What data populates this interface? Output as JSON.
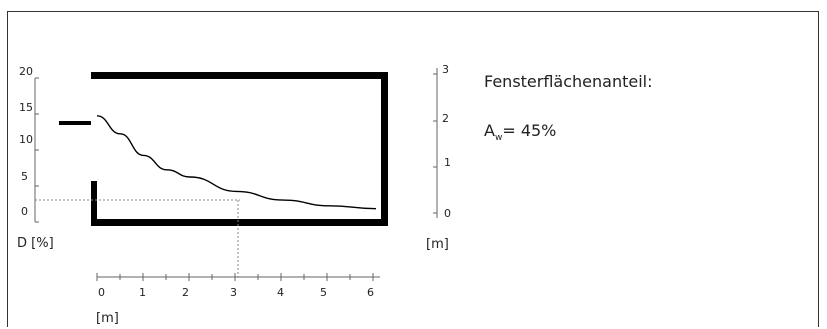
{
  "left_axis": {
    "ticks": [
      "20",
      "15",
      "10",
      "5",
      "0"
    ],
    "label": "D [%]"
  },
  "right_axis": {
    "ticks": [
      "3",
      "2",
      "1",
      "0"
    ],
    "unit": "[m]"
  },
  "bottom_axis": {
    "ticks": [
      "0",
      "1",
      "2",
      "3",
      "4",
      "5",
      "6"
    ],
    "unit": "[m]"
  },
  "info": {
    "title": "Fensterflächenanteil:",
    "symbol": "A",
    "subscript": "w",
    "value_text": "= 45%"
  },
  "chart_data": {
    "type": "line",
    "x": [
      0,
      0.5,
      1,
      1.5,
      2,
      3,
      4,
      5,
      6
    ],
    "y": [
      13.5,
      11,
      8,
      6,
      5,
      3,
      1.8,
      1,
      0.6
    ],
    "xlabel": "[m]",
    "ylabel": "D [%]",
    "xlim": [
      0,
      6
    ],
    "ylim": [
      0,
      20
    ],
    "reference_point": {
      "x": 3,
      "y": 2.5
    }
  }
}
